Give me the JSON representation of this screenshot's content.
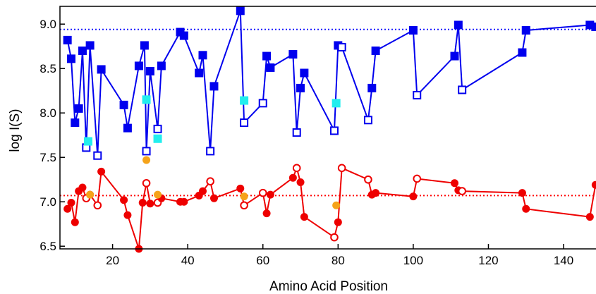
{
  "chart_data": {
    "type": "scatter",
    "xlabel": "Amino Acid Position",
    "ylabel": "log I(S)",
    "xlim": [
      6,
      149
    ],
    "ylim": [
      6.47,
      9.2
    ],
    "xticks": [
      20,
      40,
      60,
      80,
      100,
      120,
      140
    ],
    "xtick_labels": [
      "20",
      "40",
      "60",
      "80",
      "100",
      "120",
      "140"
    ],
    "yticks": [
      6.5,
      7.0,
      7.5,
      8.0,
      8.5,
      9.0
    ],
    "ytick_labels": [
      "6.5",
      "7.0",
      "7.5",
      "8.0",
      "8.5",
      "9.0"
    ],
    "grid": false,
    "reference_lines": [
      {
        "y": 8.94,
        "color": "#1a1aff",
        "style": "dotted"
      },
      {
        "y": 7.07,
        "color": "#ff0000",
        "style": "dotted"
      }
    ],
    "series": [
      {
        "color": "#0000ee",
        "marker": "square",
        "connected": true,
        "points": [
          [
            8,
            8.82,
            1
          ],
          [
            9,
            8.61,
            1
          ],
          [
            10,
            7.89,
            1
          ],
          [
            11,
            8.05,
            1
          ],
          [
            12,
            8.7,
            1
          ],
          [
            13,
            7.61,
            0
          ],
          [
            14,
            8.76,
            1
          ],
          [
            16,
            7.52,
            0
          ],
          [
            17,
            8.49,
            1
          ],
          [
            23,
            8.09,
            1
          ],
          [
            24,
            7.83,
            1
          ],
          [
            27,
            8.53,
            1
          ],
          [
            28.5,
            8.76,
            1
          ],
          [
            29,
            7.57,
            0
          ],
          [
            30,
            8.47,
            1
          ],
          [
            32,
            7.82,
            0
          ],
          [
            33,
            8.53,
            1
          ],
          [
            38,
            8.91,
            1
          ],
          [
            39,
            8.87,
            1
          ],
          [
            43,
            8.45,
            1
          ],
          [
            44,
            8.65,
            1
          ],
          [
            46,
            7.57,
            0
          ],
          [
            47,
            8.3,
            1
          ],
          [
            54,
            9.15,
            1
          ],
          [
            55,
            7.89,
            0
          ],
          [
            60,
            8.11,
            0
          ],
          [
            61,
            8.64,
            1
          ],
          [
            62,
            8.51,
            1
          ],
          [
            68,
            8.66,
            1
          ],
          [
            69,
            7.78,
            0
          ],
          [
            70,
            8.28,
            1
          ],
          [
            71,
            8.45,
            1
          ],
          [
            79,
            7.8,
            0
          ],
          [
            80,
            8.76,
            1
          ],
          [
            81,
            8.74,
            0
          ],
          [
            88,
            7.92,
            0
          ],
          [
            89,
            8.28,
            1
          ],
          [
            90,
            8.7,
            1
          ],
          [
            100,
            8.93,
            1
          ],
          [
            101,
            8.2,
            0
          ],
          [
            111,
            8.64,
            1
          ],
          [
            112,
            8.99,
            1
          ],
          [
            113,
            8.26,
            0
          ],
          [
            129,
            8.68,
            1
          ],
          [
            130,
            8.93,
            1
          ],
          [
            147,
            8.99,
            1
          ],
          [
            148.5,
            8.97,
            1
          ]
        ]
      },
      {
        "color": "#22eeee",
        "marker": "square",
        "connected": false,
        "points": [
          [
            13.5,
            7.68,
            1
          ],
          [
            29,
            8.15,
            1
          ],
          [
            32,
            7.71,
            1
          ],
          [
            55,
            8.14,
            1
          ],
          [
            79.5,
            8.11,
            1
          ]
        ]
      },
      {
        "color": "#ee0000",
        "marker": "circle",
        "connected": true,
        "points": [
          [
            8,
            6.92,
            1
          ],
          [
            9,
            6.99,
            1
          ],
          [
            10,
            6.77,
            1
          ],
          [
            11,
            7.12,
            1
          ],
          [
            12,
            7.16,
            1
          ],
          [
            13,
            7.04,
            0
          ],
          [
            14,
            7.08,
            1
          ],
          [
            16,
            6.96,
            0
          ],
          [
            17,
            7.34,
            1
          ],
          [
            23,
            7.02,
            1
          ],
          [
            24,
            6.85,
            1
          ],
          [
            27,
            6.47,
            1
          ],
          [
            28,
            6.99,
            1
          ],
          [
            29,
            7.21,
            0
          ],
          [
            30,
            6.98,
            1
          ],
          [
            32,
            6.99,
            0
          ],
          [
            33,
            7.04,
            1
          ],
          [
            38,
            7.0,
            1
          ],
          [
            39,
            7.0,
            1
          ],
          [
            43,
            7.07,
            1
          ],
          [
            44,
            7.12,
            1
          ],
          [
            46,
            7.23,
            0
          ],
          [
            47,
            7.04,
            1
          ],
          [
            54,
            7.15,
            1
          ],
          [
            55,
            6.96,
            0
          ],
          [
            60,
            7.1,
            0
          ],
          [
            61,
            6.87,
            1
          ],
          [
            62,
            7.08,
            1
          ],
          [
            68,
            7.27,
            1
          ],
          [
            69,
            7.38,
            0
          ],
          [
            70,
            7.22,
            1
          ],
          [
            71,
            6.83,
            1
          ],
          [
            79,
            6.6,
            0
          ],
          [
            80,
            6.77,
            1
          ],
          [
            81,
            7.38,
            0
          ],
          [
            88,
            7.25,
            0
          ],
          [
            89,
            7.08,
            1
          ],
          [
            90,
            7.1,
            1
          ],
          [
            100,
            7.06,
            1
          ],
          [
            101,
            7.26,
            0
          ],
          [
            111,
            7.21,
            1
          ],
          [
            112,
            7.13,
            1
          ],
          [
            113,
            7.12,
            0
          ],
          [
            129,
            7.1,
            1
          ],
          [
            130,
            6.92,
            1
          ],
          [
            147,
            6.83,
            1
          ],
          [
            148.5,
            7.19,
            1
          ]
        ]
      },
      {
        "color": "#f5a31a",
        "marker": "circle",
        "connected": false,
        "points": [
          [
            14,
            7.08,
            1
          ],
          [
            29,
            7.47,
            1
          ],
          [
            32,
            7.08,
            1
          ],
          [
            55,
            7.06,
            1
          ],
          [
            79.5,
            6.96,
            1
          ]
        ]
      }
    ]
  }
}
